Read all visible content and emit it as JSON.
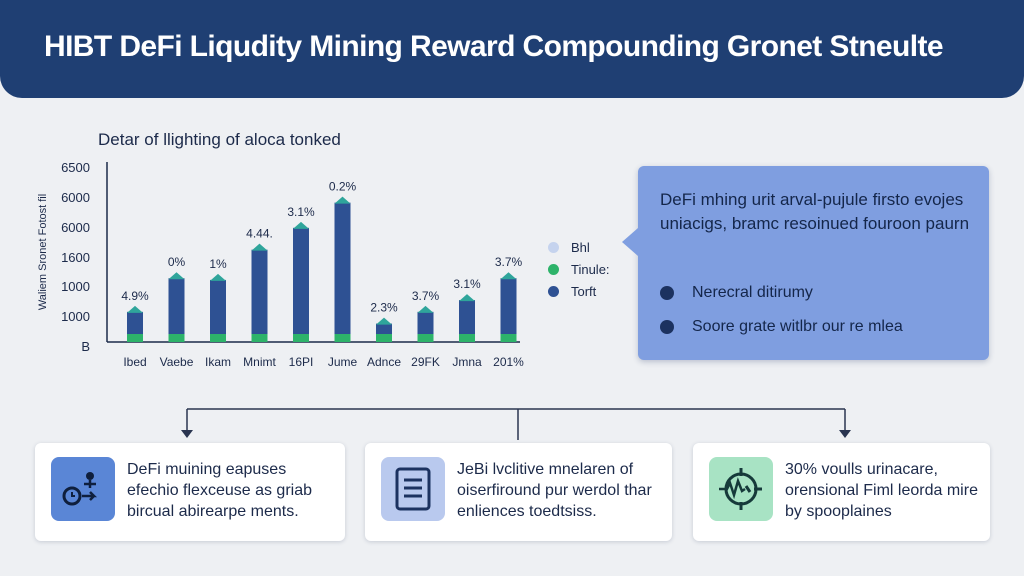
{
  "header": {
    "title": "HIBT DeFi Liqudity Mining Reward Compounding Gronet Stneulte"
  },
  "chart_data": {
    "type": "bar",
    "title": "Detar of llighting of aloca tonked",
    "ylabel": "Waliem Sronet Fotost fil",
    "categories": [
      "Ibed",
      "Vaebe",
      "Ikam",
      "Mnimt",
      "16PI",
      "Jume",
      "Adnce",
      "29FK",
      "Jmna",
      "201%"
    ],
    "y_tick_labels": [
      "6500",
      "6000",
      "6000",
      "1600",
      "1000",
      "1000",
      "B"
    ],
    "bar_labels": [
      "4.9%",
      "0%",
      "1%",
      "4.44.",
      "3.1%",
      "0.2%",
      "2.3%",
      "3.7%",
      "3.1%",
      "3.7%"
    ],
    "bar_level_fraction": [
      0.12,
      0.32,
      0.31,
      0.49,
      0.62,
      0.77,
      0.05,
      0.12,
      0.19,
      0.32
    ],
    "legend": [
      {
        "label": "Bhl",
        "color": "#c5d3ee"
      },
      {
        "label": "Tinule:",
        "color": "#2db36a"
      },
      {
        "label": "Torft",
        "color": "#2e5193"
      }
    ],
    "colors": {
      "bar": "#2e5193",
      "base": "#2db36a",
      "cap": "#2fa59b"
    },
    "grid": false
  },
  "callout": {
    "text": "DeFi mhing urit arval-pujule firsto evojes uniacigs, bramc resoinued fouroon paurn",
    "bullets": [
      "Nerecral ditirumy",
      "Soore grate witlbr our re mlea"
    ]
  },
  "cards": [
    {
      "text": "DeFi muining eapuses efechio flexceuse as griab bircual abirearpe ments.",
      "icon": "network-user-icon",
      "icon_bg": "#5a86d6"
    },
    {
      "text": "JeBi lvclitive mnelaren of oiserfiround pur werdol thar enliences toedtsiss.",
      "icon": "document-icon",
      "icon_bg": "#b9c9ee"
    },
    {
      "text": "30% voulls urinacare, orensional Fiml leorda mire by spooplaines",
      "icon": "target-pulse-icon",
      "icon_bg": "#a8e3c4"
    }
  ]
}
